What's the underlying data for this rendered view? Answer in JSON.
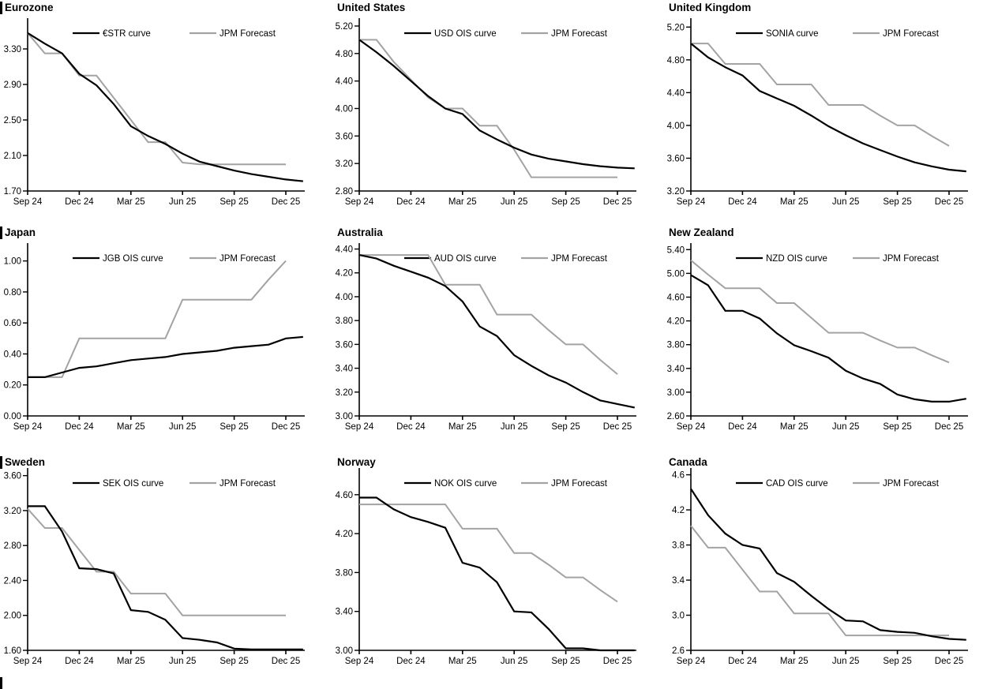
{
  "page": {
    "colors": {
      "market": "#000000",
      "forecast": "#a3a3a3",
      "axis": "#000000",
      "background": "#ffffff"
    },
    "x_axis": {
      "tick_labels": [
        "Sep 24",
        "Dec 24",
        "Mar 25",
        "Jun 25",
        "Sep 25",
        "Dec 25"
      ],
      "tick_indices": [
        0,
        3,
        6,
        9,
        12,
        15
      ],
      "points_are_monthly_from": "Sep 24",
      "n_forecast_points": 16,
      "n_market_points": 17,
      "note": "market curve extends one month past Dec 25; forecast ends at Dec 25"
    },
    "legend_note": "each chart legend: black market curve, gray JPM Forecast"
  },
  "chart_data": [
    {
      "type": "line",
      "title": "Eurozone",
      "section_marker": true,
      "y_tick_labels": [
        "3.30",
        "2.90",
        "2.50",
        "2.10",
        "1.70"
      ],
      "ylim": [
        1.7,
        3.62
      ],
      "grid": false,
      "legend_position": "top-center",
      "series": [
        {
          "name": "€STR curve",
          "role": "market",
          "values": [
            3.48,
            3.36,
            3.25,
            3.02,
            2.89,
            2.68,
            2.43,
            2.32,
            2.23,
            2.12,
            2.03,
            1.98,
            1.93,
            1.89,
            1.86,
            1.83,
            1.81
          ]
        },
        {
          "name": "JPM Forecast",
          "role": "forecast",
          "values": [
            3.48,
            3.25,
            3.25,
            3.0,
            3.0,
            2.75,
            2.5,
            2.25,
            2.25,
            2.02,
            2.0,
            2.0,
            2.0,
            2.0,
            2.0,
            2.0
          ]
        }
      ]
    },
    {
      "type": "line",
      "title": "United States",
      "section_marker": false,
      "y_tick_labels": [
        "5.20",
        "4.80",
        "4.40",
        "4.00",
        "3.60",
        "3.20",
        "2.80"
      ],
      "ylim": [
        2.8,
        5.28
      ],
      "grid": false,
      "legend_position": "top-center",
      "series": [
        {
          "name": "USD OIS curve",
          "role": "market",
          "values": [
            5.0,
            4.82,
            4.62,
            4.4,
            4.18,
            4.0,
            3.92,
            3.68,
            3.55,
            3.43,
            3.33,
            3.27,
            3.23,
            3.19,
            3.16,
            3.14,
            3.13
          ]
        },
        {
          "name": "JPM Forecast",
          "role": "forecast",
          "values": [
            5.0,
            5.0,
            4.68,
            4.42,
            4.16,
            4.0,
            4.0,
            3.75,
            3.75,
            3.4,
            3.0,
            3.0,
            3.0,
            3.0,
            3.0,
            3.0
          ]
        }
      ]
    },
    {
      "type": "line",
      "title": "United Kingdom",
      "section_marker": false,
      "y_tick_labels": [
        "5.20",
        "4.80",
        "4.40",
        "4.00",
        "3.60",
        "3.20"
      ],
      "ylim": [
        3.2,
        5.28
      ],
      "grid": false,
      "legend_position": "top-center",
      "series": [
        {
          "name": "SONIA curve",
          "role": "market",
          "values": [
            5.0,
            4.83,
            4.71,
            4.61,
            4.42,
            4.33,
            4.24,
            4.12,
            3.99,
            3.88,
            3.78,
            3.7,
            3.62,
            3.55,
            3.5,
            3.46,
            3.44
          ]
        },
        {
          "name": "JPM Forecast",
          "role": "forecast",
          "values": [
            5.0,
            5.0,
            4.75,
            4.75,
            4.75,
            4.5,
            4.5,
            4.5,
            4.25,
            4.25,
            4.25,
            4.12,
            4.0,
            4.0,
            3.87,
            3.75
          ]
        }
      ]
    },
    {
      "type": "line",
      "title": "Japan",
      "section_marker": true,
      "y_tick_labels": [
        "1.00",
        "0.80",
        "0.60",
        "0.40",
        "0.20",
        "0.00"
      ],
      "ylim": [
        0.0,
        1.1
      ],
      "grid": false,
      "legend_position": "top-center",
      "series": [
        {
          "name": "JGB OIS curve",
          "role": "market",
          "values": [
            0.25,
            0.25,
            0.28,
            0.31,
            0.32,
            0.34,
            0.36,
            0.37,
            0.38,
            0.4,
            0.41,
            0.42,
            0.44,
            0.45,
            0.46,
            0.5,
            0.51
          ]
        },
        {
          "name": "JPM Forecast",
          "role": "forecast",
          "values": [
            0.25,
            0.25,
            0.25,
            0.5,
            0.5,
            0.5,
            0.5,
            0.5,
            0.5,
            0.75,
            0.75,
            0.75,
            0.75,
            0.75,
            0.88,
            1.0
          ]
        }
      ]
    },
    {
      "type": "line",
      "title": "Australia",
      "section_marker": false,
      "y_tick_labels": [
        "4.40",
        "4.20",
        "4.00",
        "3.80",
        "3.60",
        "3.40",
        "3.20",
        "3.00"
      ],
      "ylim": [
        3.0,
        4.43
      ],
      "grid": false,
      "legend_position": "top-center",
      "series": [
        {
          "name": "AUD OIS curve",
          "role": "market",
          "values": [
            4.35,
            4.32,
            4.26,
            4.21,
            4.16,
            4.09,
            3.96,
            3.75,
            3.67,
            3.51,
            3.42,
            3.34,
            3.28,
            3.2,
            3.13,
            3.1,
            3.07
          ]
        },
        {
          "name": "JPM Forecast",
          "role": "forecast",
          "values": [
            4.35,
            4.35,
            4.35,
            4.35,
            4.35,
            4.1,
            4.1,
            4.1,
            3.85,
            3.85,
            3.85,
            3.72,
            3.6,
            3.6,
            3.47,
            3.35
          ]
        }
      ]
    },
    {
      "type": "line",
      "title": "New Zealand",
      "section_marker": false,
      "y_tick_labels": [
        "5.40",
        "5.00",
        "4.60",
        "4.20",
        "3.80",
        "3.40",
        "3.00",
        "2.60"
      ],
      "ylim": [
        2.6,
        5.47
      ],
      "grid": false,
      "legend_position": "top-center",
      "series": [
        {
          "name": "NZD OIS curve",
          "role": "market",
          "values": [
            4.97,
            4.8,
            4.37,
            4.37,
            4.24,
            3.99,
            3.79,
            3.69,
            3.58,
            3.36,
            3.23,
            3.14,
            2.96,
            2.88,
            2.84,
            2.84,
            2.89
          ]
        },
        {
          "name": "JPM Forecast",
          "role": "forecast",
          "values": [
            5.22,
            4.98,
            4.75,
            4.75,
            4.75,
            4.5,
            4.5,
            4.25,
            4.0,
            4.0,
            4.0,
            3.87,
            3.75,
            3.75,
            3.62,
            3.5
          ]
        }
      ]
    },
    {
      "type": "line",
      "title": "Sweden",
      "section_marker": true,
      "y_tick_labels": [
        "3.60",
        "3.20",
        "2.80",
        "2.40",
        "2.00",
        "1.60"
      ],
      "ylim": [
        1.6,
        3.66
      ],
      "grid": false,
      "legend_position": "top-center",
      "series": [
        {
          "name": "SEK OIS curve",
          "role": "market",
          "values": [
            3.25,
            3.25,
            2.96,
            2.54,
            2.53,
            2.48,
            2.06,
            2.04,
            1.95,
            1.74,
            1.72,
            1.69,
            1.62,
            1.61,
            1.61,
            1.61,
            1.61
          ]
        },
        {
          "name": "JPM Forecast",
          "role": "forecast",
          "values": [
            3.22,
            3.0,
            3.0,
            2.75,
            2.5,
            2.5,
            2.25,
            2.25,
            2.25,
            2.0,
            2.0,
            2.0,
            2.0,
            2.0,
            2.0,
            2.0
          ]
        }
      ]
    },
    {
      "type": "line",
      "title": "Norway",
      "section_marker": false,
      "y_tick_labels": [
        "4.60",
        "4.20",
        "3.80",
        "3.40",
        "3.00"
      ],
      "ylim": [
        3.0,
        4.85
      ],
      "grid": false,
      "legend_position": "top-center",
      "series": [
        {
          "name": "NOK OIS curve",
          "role": "market",
          "values": [
            4.57,
            4.57,
            4.45,
            4.37,
            4.32,
            4.26,
            3.9,
            3.85,
            3.7,
            3.4,
            3.39,
            3.22,
            3.02,
            3.02,
            3.0,
            3.0,
            3.0
          ]
        },
        {
          "name": "JPM Forecast",
          "role": "forecast",
          "values": [
            4.5,
            4.5,
            4.5,
            4.5,
            4.5,
            4.5,
            4.25,
            4.25,
            4.25,
            4.0,
            4.0,
            3.88,
            3.75,
            3.75,
            3.62,
            3.5
          ]
        }
      ]
    },
    {
      "type": "line",
      "title": "Canada",
      "section_marker": false,
      "y_tick_labels": [
        "4.6",
        "4.2",
        "3.8",
        "3.4",
        "3.0",
        "2.6"
      ],
      "ylim": [
        2.6,
        4.65
      ],
      "grid": false,
      "legend_position": "top-center",
      "series": [
        {
          "name": "CAD OIS curve",
          "role": "market",
          "values": [
            4.44,
            4.14,
            3.93,
            3.8,
            3.76,
            3.48,
            3.38,
            3.22,
            3.07,
            2.94,
            2.93,
            2.83,
            2.81,
            2.8,
            2.76,
            2.73,
            2.72
          ]
        },
        {
          "name": "JPM Forecast",
          "role": "forecast",
          "values": [
            4.02,
            3.77,
            3.77,
            3.52,
            3.27,
            3.27,
            3.02,
            3.02,
            3.02,
            2.77,
            2.77,
            2.77,
            2.77,
            2.77,
            2.77,
            2.77
          ]
        }
      ]
    }
  ]
}
